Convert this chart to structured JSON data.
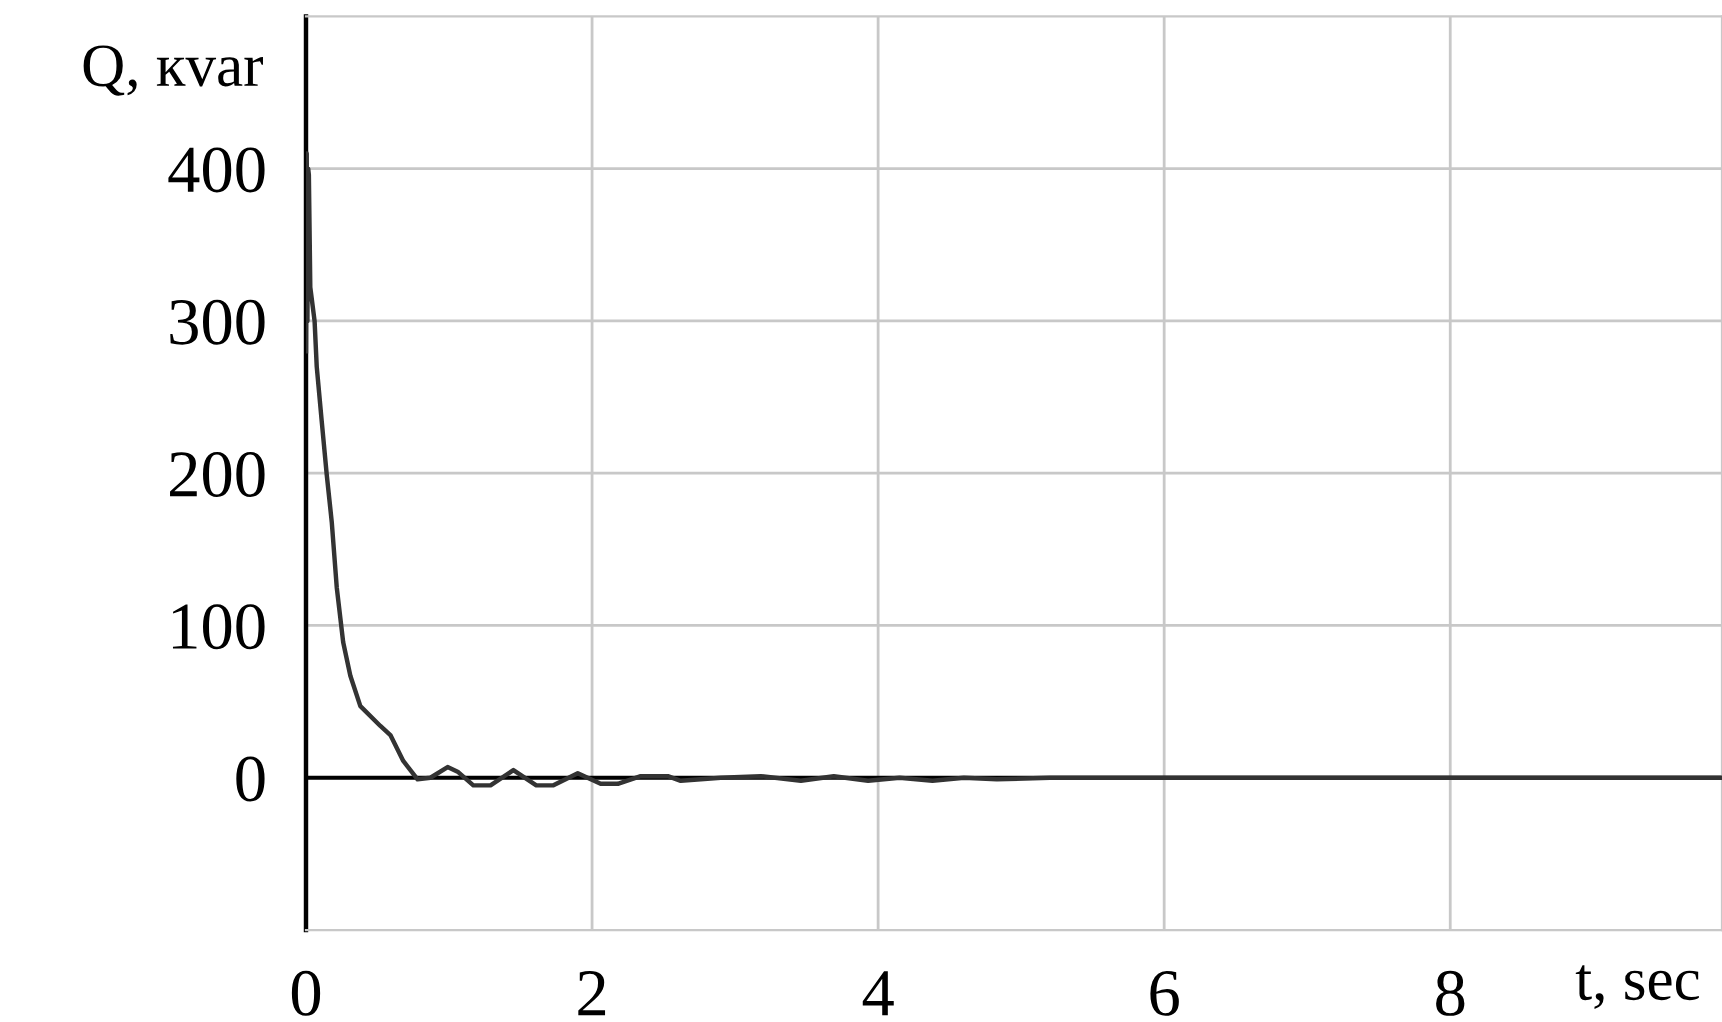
{
  "chart_data": {
    "type": "line",
    "xlabel": "t, sec",
    "ylabel": "Q, кvar",
    "x": [
      0,
      0.005,
      0.01,
      0.015,
      0.02,
      0.03,
      0.06,
      0.075,
      0.11,
      0.145,
      0.18,
      0.215,
      0.26,
      0.31,
      0.38,
      0.52,
      0.59,
      0.68,
      0.78,
      0.87,
      0.99,
      1.06,
      1.17,
      1.29,
      1.45,
      1.61,
      1.73,
      1.9,
      2.06,
      2.18,
      2.34,
      2.53,
      2.62,
      2.9,
      3.18,
      3.46,
      3.69,
      3.93,
      4.15,
      4.38,
      4.6,
      4.83,
      5.2,
      9.9
    ],
    "series": [
      {
        "color": "#333333",
        "values": [
          280,
          410,
          300,
          400,
          396,
          322,
          300,
          270,
          234,
          199,
          168,
          125,
          89,
          67,
          47,
          34,
          28,
          11,
          -1,
          0,
          7,
          4,
          -5,
          -5,
          5,
          -5,
          -5,
          3,
          -4,
          -4,
          1,
          1,
          -2,
          0,
          1,
          -2,
          1,
          -2,
          0,
          -2,
          0,
          -1,
          0,
          0
        ]
      }
    ],
    "xlim": [
      0,
      9.9
    ],
    "ylim": [
      -100,
      500
    ],
    "xticks": [
      0,
      2,
      4,
      6,
      8
    ],
    "yticks": [
      0,
      100,
      200,
      300,
      400
    ],
    "grid": true,
    "ref_lines": [
      {
        "axis": "y",
        "value": 0,
        "color": "#000000"
      }
    ]
  }
}
